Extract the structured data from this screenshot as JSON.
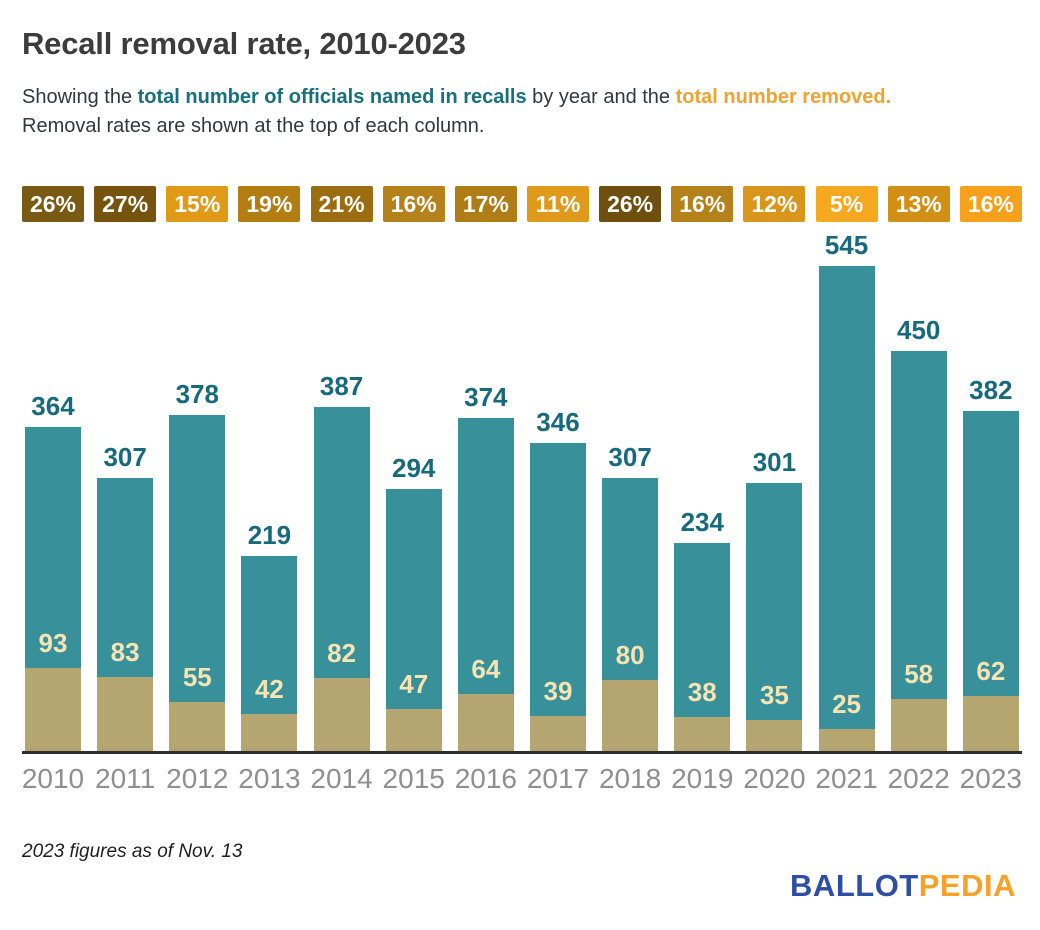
{
  "header": {
    "title": "Recall removal rate, 2010-2023",
    "subtitle_pre": "Showing the ",
    "subtitle_named": "total number of officials named in recalls",
    "subtitle_mid": " by year and the ",
    "subtitle_removed": "total number removed.",
    "subtitle_line2": "Removal rates are shown at the top of each column."
  },
  "chart_data": {
    "type": "bar",
    "title": "Recall removal rate, 2010-2023",
    "categories": [
      "2010",
      "2011",
      "2012",
      "2013",
      "2014",
      "2015",
      "2016",
      "2017",
      "2018",
      "2019",
      "2020",
      "2021",
      "2022",
      "2023"
    ],
    "series": [
      {
        "name": "Total officials named in recalls",
        "values": [
          364,
          307,
          378,
          219,
          387,
          294,
          374,
          346,
          307,
          234,
          301,
          545,
          450,
          382
        ]
      },
      {
        "name": "Total removed",
        "values": [
          93,
          83,
          55,
          42,
          82,
          47,
          64,
          39,
          80,
          38,
          35,
          25,
          58,
          62
        ]
      }
    ],
    "removal_rates": [
      "26%",
      "27%",
      "15%",
      "19%",
      "21%",
      "16%",
      "17%",
      "11%",
      "26%",
      "16%",
      "12%",
      "5%",
      "13%",
      "16%"
    ],
    "rate_colors": [
      "#7a5913",
      "#76540f",
      "#e09a18",
      "#b37d12",
      "#9c6d10",
      "#b5811a",
      "#b07c16",
      "#df9a1b",
      "#6e4f0d",
      "#b5811a",
      "#d9951c",
      "#f6a81f",
      "#d28f15",
      "#f6a11c"
    ],
    "legend_position": "none",
    "grid": false,
    "ylim": [
      0,
      545
    ]
  },
  "colors": {
    "named_bar": "#38909b",
    "removed_bar": "#b4a571",
    "named_value_label": "#176a7c",
    "removed_value_label": "#f7e4b2",
    "subtitle_named_highlight": "#16707f",
    "subtitle_removed_highlight": "#f0a232",
    "axis_line": "#2f2f2f",
    "year_label": "#8f8f8f",
    "badge_text": "#ffffff",
    "logo_ballot": "#2e4ea3",
    "logo_pedia": "#f5a12a"
  },
  "footnote": "2023 figures as of Nov. 13",
  "logo": {
    "ballot": "BALLOT",
    "pedia": "PEDIA"
  }
}
